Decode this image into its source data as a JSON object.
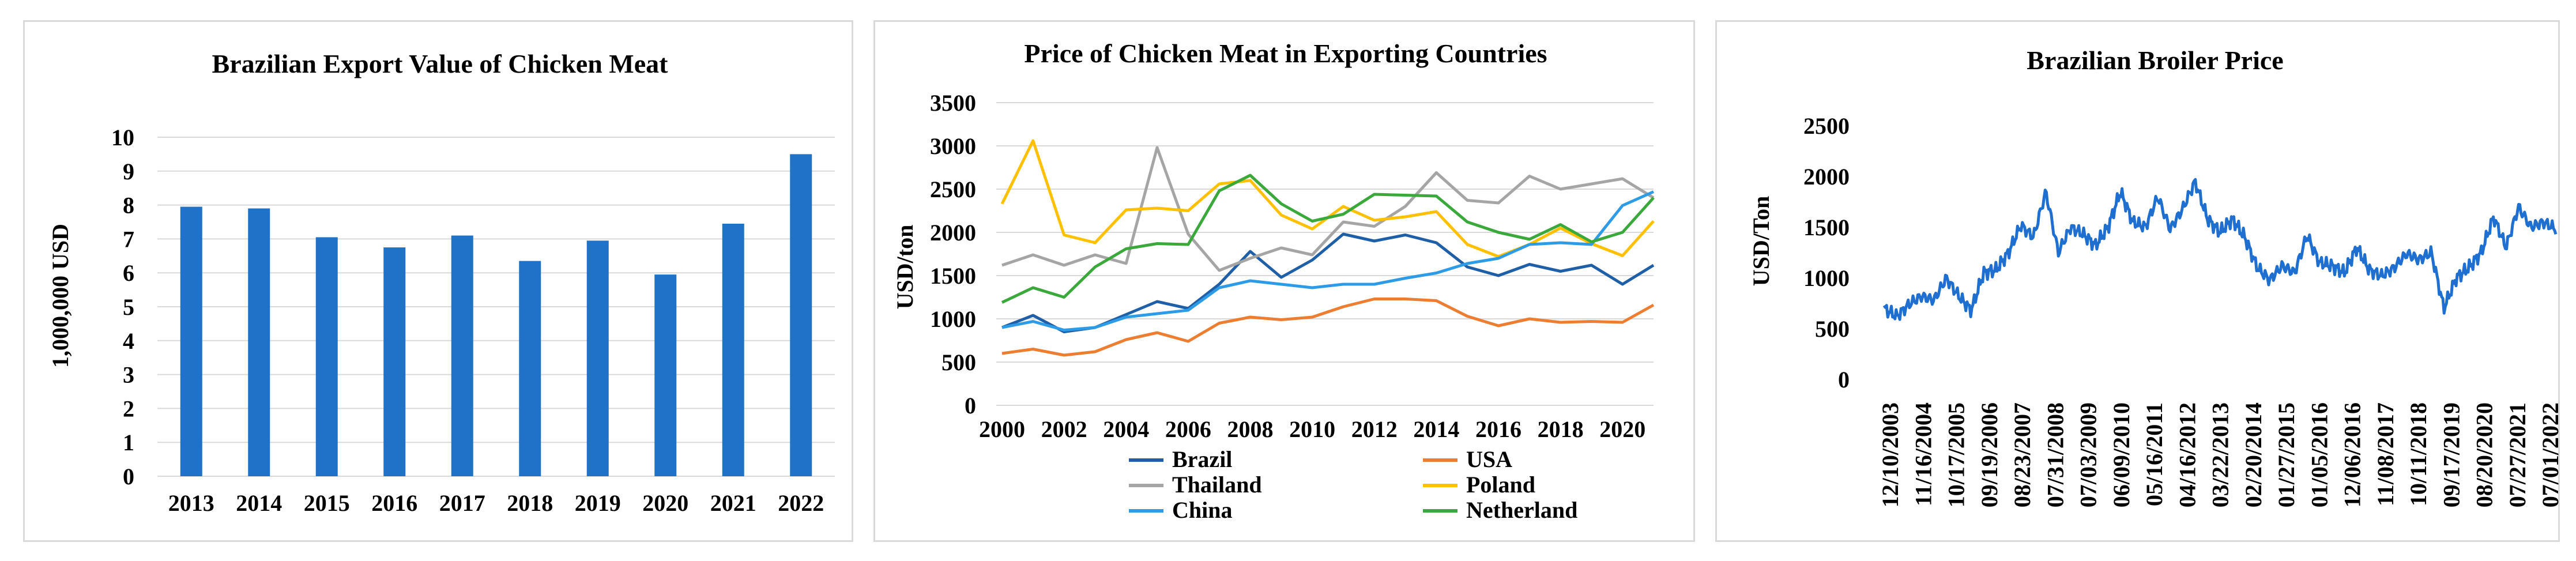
{
  "chart_data": [
    {
      "type": "bar",
      "title": "Brazilian Export Value of Chicken Meat",
      "xlabel": "",
      "ylabel": "1,000,000 USD",
      "ylim": [
        0,
        10
      ],
      "yticks": [
        "0",
        "1",
        "2",
        "3",
        "4",
        "5",
        "6",
        "7",
        "8",
        "9",
        "10"
      ],
      "categories": [
        "2013",
        "2014",
        "2015",
        "2016",
        "2017",
        "2018",
        "2019",
        "2020",
        "2021",
        "2022"
      ],
      "values": [
        7.95,
        7.9,
        7.05,
        6.75,
        7.1,
        6.35,
        6.95,
        5.95,
        7.45,
        9.5
      ],
      "color": "#1f72c8",
      "grid": true
    },
    {
      "type": "line",
      "title": "Price of Chicken Meat in Exporting Countries",
      "xlabel": "",
      "ylabel": "USD/ton",
      "ylim": [
        0,
        3500
      ],
      "yticks": [
        "0",
        "500",
        "1000",
        "1500",
        "2000",
        "2500",
        "3000",
        "3500"
      ],
      "x": [
        2000,
        2001,
        2002,
        2003,
        2004,
        2005,
        2006,
        2007,
        2008,
        2009,
        2010,
        2011,
        2012,
        2013,
        2014,
        2015,
        2016,
        2017,
        2018,
        2019,
        2020,
        2021
      ],
      "xticks": [
        "2000",
        "2002",
        "2004",
        "2006",
        "2008",
        "2010",
        "2012",
        "2014",
        "2016",
        "2018",
        "2020"
      ],
      "legend_position": "bottom",
      "grid": true,
      "series": [
        {
          "name": "Brazil",
          "color": "#1f5fa8",
          "values": [
            900,
            1040,
            850,
            900,
            1050,
            1200,
            1120,
            1400,
            1780,
            1480,
            1680,
            1980,
            1900,
            1970,
            1880,
            1600,
            1500,
            1630,
            1550,
            1620,
            1400,
            1620
          ]
        },
        {
          "name": "USA",
          "color": "#ed7d31",
          "values": [
            600,
            650,
            580,
            620,
            760,
            840,
            740,
            950,
            1020,
            990,
            1020,
            1140,
            1230,
            1230,
            1210,
            1030,
            920,
            1000,
            960,
            970,
            960,
            1160
          ]
        },
        {
          "name": "Thailand",
          "color": "#a5a5a5",
          "values": [
            1620,
            1740,
            1620,
            1740,
            1640,
            2980,
            1980,
            1560,
            1700,
            1820,
            1740,
            2120,
            2070,
            2300,
            2690,
            2370,
            2340,
            2650,
            2500,
            2560,
            2620,
            2400
          ]
        },
        {
          "name": "Poland",
          "color": "#ffc000",
          "values": [
            2330,
            3060,
            1970,
            1880,
            2260,
            2280,
            2250,
            2560,
            2600,
            2200,
            2040,
            2300,
            2140,
            2180,
            2240,
            1860,
            1720,
            1860,
            2050,
            1870,
            1730,
            2130
          ]
        },
        {
          "name": "China",
          "color": "#2e9be6",
          "values": [
            900,
            970,
            870,
            900,
            1020,
            1060,
            1100,
            1360,
            1440,
            1400,
            1360,
            1400,
            1400,
            1470,
            1530,
            1640,
            1700,
            1860,
            1880,
            1860,
            2310,
            2470
          ]
        },
        {
          "name": "Netherland",
          "color": "#3aa83a",
          "values": [
            1190,
            1360,
            1250,
            1600,
            1810,
            1870,
            1860,
            2480,
            2660,
            2330,
            2130,
            2210,
            2440,
            2430,
            2420,
            2120,
            2000,
            1920,
            2090,
            1890,
            2000,
            2400
          ]
        }
      ]
    },
    {
      "type": "line",
      "title": "Brazilian Broiler Price",
      "xlabel": "",
      "ylabel": "USD/Ton",
      "ylim": [
        0,
        2500
      ],
      "yticks": [
        "0",
        "500",
        "1000",
        "1500",
        "2000",
        "2500"
      ],
      "xticks": [
        "12/10/2003",
        "11/16/2004",
        "10/17/2005",
        "09/19/2006",
        "08/23/2007",
        "07/31/2008",
        "07/03/2009",
        "06/09/2010",
        "05/16/2011",
        "04/16/2012",
        "03/22/2013",
        "02/20/2014",
        "01/27/2015",
        "01/05/2016",
        "12/06/2016",
        "11/08/2017",
        "10/11/2018",
        "09/17/2019",
        "08/20/2020",
        "07/27/2021",
        "07/01/2022"
      ],
      "color": "#1f6fd0",
      "series": [
        {
          "name": "Brazilian Broiler Price",
          "anchor_values": [
            700,
            620,
            740,
            820,
            780,
            1000,
            820,
            680,
            1050,
            1080,
            1250,
            1520,
            1400,
            1850,
            1250,
            1500,
            1430,
            1320,
            1500,
            1850,
            1550,
            1500,
            1800,
            1480,
            1680,
            1950,
            1580,
            1450,
            1580,
            1400,
            1100,
            980,
            1120,
            1050,
            1420,
            1150,
            1120,
            1050,
            1300,
            1080,
            1020,
            1100,
            1240,
            1180,
            1250,
            700,
            1000,
            1100,
            1250,
            1600,
            1300,
            1700,
            1500,
            1550,
            1480
          ]
        }
      ]
    }
  ]
}
